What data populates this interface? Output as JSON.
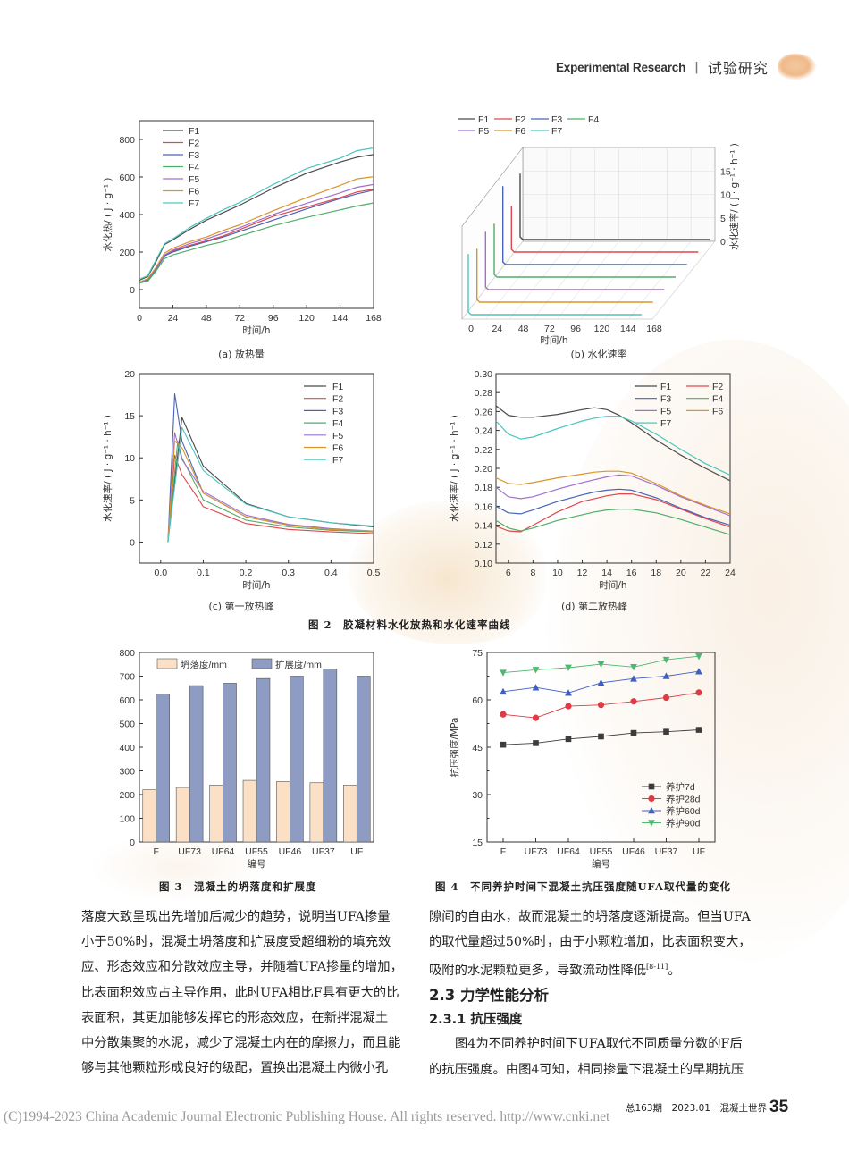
{
  "header": {
    "section_en": "Experimental Research",
    "separator": "|",
    "section_cn": "试验研究"
  },
  "figure2": {
    "caption": "图 2　胶凝材料水化放热和水化速率曲线",
    "panels": {
      "a": {
        "caption": "(a) 放热量"
      },
      "b": {
        "caption": "(b) 水化速率"
      },
      "c": {
        "caption": "(c) 第一放热峰"
      },
      "d": {
        "caption": "(d) 第二放热峰"
      }
    }
  },
  "figure3": {
    "caption": "图 3　混凝土的坍落度和扩展度"
  },
  "figure4": {
    "caption": "图 4　不同养护时间下混凝土抗压强度随UFA取代量的变化"
  },
  "colors": {
    "F1": "#4a4a4a",
    "F2": "#e0474c",
    "F3": "#4a63b5",
    "F4": "#4fae6a",
    "F5": "#a070d0",
    "F6": "#d9952a",
    "F7": "#4cc6c0",
    "slump": "#fbe0c6",
    "spread": "#8e9cc4"
  },
  "chart_data": [
    {
      "id": "fig2a",
      "type": "line",
      "title": "(a) 放热量",
      "xlabel": "时间/h",
      "ylabel": "水化热/ ( J · g⁻¹ )",
      "xlim": [
        0,
        168
      ],
      "ylim": [
        -100,
        900
      ],
      "xticks": [
        0,
        24,
        48,
        72,
        96,
        120,
        144,
        168
      ],
      "yticks": [
        0,
        200,
        400,
        600,
        800
      ],
      "legend_position": "upper-left",
      "x": [
        0,
        6,
        12,
        18,
        24,
        36,
        48,
        60,
        72,
        96,
        120,
        144,
        156,
        168
      ],
      "series": [
        {
          "name": "F1",
          "values": [
            50,
            70,
            150,
            240,
            265,
            320,
            370,
            410,
            450,
            540,
            620,
            680,
            705,
            720
          ]
        },
        {
          "name": "F2",
          "values": [
            35,
            50,
            110,
            180,
            205,
            235,
            260,
            285,
            320,
            390,
            440,
            490,
            520,
            535
          ]
        },
        {
          "name": "F3",
          "values": [
            35,
            50,
            110,
            180,
            200,
            230,
            255,
            280,
            310,
            370,
            430,
            485,
            510,
            530
          ]
        },
        {
          "name": "F4",
          "values": [
            35,
            45,
            100,
            165,
            185,
            210,
            235,
            255,
            285,
            340,
            385,
            425,
            445,
            462
          ]
        },
        {
          "name": "F5",
          "values": [
            38,
            55,
            115,
            185,
            210,
            245,
            270,
            300,
            330,
            400,
            460,
            515,
            545,
            560
          ]
        },
        {
          "name": "F6",
          "values": [
            40,
            58,
            120,
            195,
            220,
            255,
            280,
            315,
            345,
            420,
            490,
            555,
            590,
            602
          ]
        },
        {
          "name": "F7",
          "values": [
            55,
            75,
            160,
            245,
            270,
            330,
            380,
            425,
            465,
            560,
            645,
            700,
            740,
            755
          ]
        }
      ]
    },
    {
      "id": "fig2b",
      "type": "line",
      "title": "(b) 水化速率",
      "xlabel": "时间/h",
      "ylabel": "水化速率/ ( J · g⁻¹ · h⁻¹ )",
      "xlim": [
        0,
        168
      ],
      "zlim": [
        0,
        20
      ],
      "xticks": [
        0,
        24,
        48,
        72,
        96,
        120,
        144,
        168
      ],
      "zticks": [
        0,
        5,
        10,
        15
      ],
      "legend_position": "top",
      "series": [
        {
          "name": "F1",
          "peak": 14.8
        },
        {
          "name": "F2",
          "peak": 10.3
        },
        {
          "name": "F3",
          "peak": 17.6
        },
        {
          "name": "F4",
          "peak": 12.0
        },
        {
          "name": "F5",
          "peak": 13.0
        },
        {
          "name": "F6",
          "peak": 12.0
        },
        {
          "name": "F7",
          "peak": 13.6
        }
      ]
    },
    {
      "id": "fig2c",
      "type": "line",
      "title": "(c) 第一放热峰",
      "xlabel": "时间/h",
      "ylabel": "水化速率/ ( J · g⁻¹ · h⁻¹ )",
      "xlim": [
        -0.05,
        0.5
      ],
      "ylim": [
        -2.5,
        20
      ],
      "xticks": [
        0.0,
        0.1,
        0.2,
        0.3,
        0.4,
        0.5
      ],
      "yticks": [
        0,
        5,
        10,
        15,
        20
      ],
      "legend_position": "upper-right",
      "series": [
        {
          "name": "F1",
          "x": [
            0.017,
            0.05,
            0.1,
            0.2,
            0.3,
            0.4,
            0.5
          ],
          "values": [
            0,
            14.8,
            9.0,
            4.6,
            3.0,
            2.3,
            1.8
          ]
        },
        {
          "name": "F2",
          "x": [
            0.017,
            0.033,
            0.05,
            0.085,
            0.1,
            0.2,
            0.3,
            0.4,
            0.5
          ],
          "values": [
            0,
            10.3,
            8.0,
            5.4,
            4.2,
            2.2,
            1.5,
            1.2,
            1.0
          ]
        },
        {
          "name": "F3",
          "x": [
            0.017,
            0.033,
            0.05,
            0.1,
            0.2,
            0.3,
            0.4,
            0.5
          ],
          "values": [
            0,
            17.6,
            12.0,
            5.8,
            3.0,
            2.0,
            1.5,
            1.2
          ]
        },
        {
          "name": "F4",
          "x": [
            0.017,
            0.04,
            0.05,
            0.1,
            0.2,
            0.3,
            0.4,
            0.5
          ],
          "values": [
            0,
            12.0,
            10.0,
            5.0,
            2.6,
            1.8,
            1.4,
            1.2
          ]
        },
        {
          "name": "F5",
          "x": [
            0.017,
            0.033,
            0.05,
            0.1,
            0.2,
            0.3,
            0.4,
            0.5
          ],
          "values": [
            0,
            13.0,
            9.8,
            6.0,
            3.2,
            2.1,
            1.6,
            1.3
          ]
        },
        {
          "name": "F6",
          "x": [
            0.017,
            0.033,
            0.05,
            0.1,
            0.2,
            0.3,
            0.4,
            0.5
          ],
          "values": [
            0,
            12.0,
            11.2,
            5.8,
            3.0,
            2.0,
            1.5,
            1.3
          ]
        },
        {
          "name": "F7",
          "x": [
            0.017,
            0.05,
            0.1,
            0.2,
            0.3,
            0.4,
            0.5
          ],
          "values": [
            0,
            13.6,
            8.5,
            4.5,
            3.0,
            2.3,
            1.9
          ]
        }
      ]
    },
    {
      "id": "fig2d",
      "type": "line",
      "title": "(d) 第二放热峰",
      "xlabel": "时间/h",
      "ylabel": "水化速率/ ( J · g⁻¹ · h⁻¹ )",
      "xlim": [
        5,
        24
      ],
      "ylim": [
        0.1,
        0.3
      ],
      "xticks": [
        6,
        8,
        10,
        12,
        14,
        16,
        18,
        20,
        22,
        24
      ],
      "yticks": [
        0.1,
        0.12,
        0.14,
        0.16,
        0.18,
        0.2,
        0.22,
        0.24,
        0.26,
        0.28,
        0.3
      ],
      "legend_position": "upper-right",
      "x": [
        5,
        6,
        7,
        8,
        10,
        12,
        13,
        14,
        15,
        16,
        18,
        20,
        22,
        24
      ],
      "series": [
        {
          "name": "F1",
          "values": [
            0.266,
            0.256,
            0.254,
            0.254,
            0.257,
            0.262,
            0.264,
            0.262,
            0.256,
            0.248,
            0.23,
            0.214,
            0.2,
            0.187
          ]
        },
        {
          "name": "F2",
          "values": [
            0.139,
            0.134,
            0.133,
            0.14,
            0.154,
            0.165,
            0.168,
            0.171,
            0.173,
            0.173,
            0.167,
            0.157,
            0.147,
            0.138
          ]
        },
        {
          "name": "F3",
          "values": [
            0.16,
            0.153,
            0.152,
            0.156,
            0.165,
            0.172,
            0.175,
            0.177,
            0.178,
            0.177,
            0.169,
            0.158,
            0.148,
            0.14
          ]
        },
        {
          "name": "F4",
          "values": [
            0.145,
            0.137,
            0.134,
            0.137,
            0.145,
            0.151,
            0.154,
            0.156,
            0.157,
            0.157,
            0.153,
            0.146,
            0.138,
            0.13
          ]
        },
        {
          "name": "F5",
          "values": [
            0.18,
            0.17,
            0.168,
            0.17,
            0.178,
            0.185,
            0.188,
            0.191,
            0.193,
            0.192,
            0.182,
            0.17,
            0.16,
            0.15
          ]
        },
        {
          "name": "F6",
          "values": [
            0.19,
            0.184,
            0.183,
            0.185,
            0.19,
            0.194,
            0.196,
            0.197,
            0.197,
            0.195,
            0.184,
            0.171,
            0.161,
            0.152
          ]
        },
        {
          "name": "F7",
          "values": [
            0.25,
            0.236,
            0.231,
            0.233,
            0.242,
            0.25,
            0.253,
            0.255,
            0.255,
            0.25,
            0.236,
            0.22,
            0.205,
            0.193
          ]
        }
      ]
    },
    {
      "id": "fig3",
      "type": "bar",
      "title": "图 3 混凝土的坍落度和扩展度",
      "xlabel": "编号",
      "ylabel": "",
      "ylim": [
        0,
        800
      ],
      "yticks": [
        0,
        100,
        200,
        300,
        400,
        500,
        600,
        700,
        800
      ],
      "legend_position": "top",
      "categories": [
        "F",
        "UF73",
        "UF64",
        "UF55",
        "UF46",
        "UF37",
        "UF"
      ],
      "series": [
        {
          "name": "坍落度/mm",
          "values": [
            220,
            230,
            240,
            260,
            255,
            250,
            240
          ]
        },
        {
          "name": "扩展度/mm",
          "values": [
            625,
            660,
            670,
            690,
            700,
            730,
            700
          ]
        }
      ]
    },
    {
      "id": "fig4",
      "type": "line",
      "title": "图 4 不同养护时间下混凝土抗压强度随UFA取代量的变化",
      "xlabel": "编号",
      "ylabel": "抗压强度/MPa",
      "ylim": [
        15,
        75
      ],
      "yticks": [
        15,
        30,
        45,
        60,
        75
      ],
      "legend_position": "lower-right",
      "categories": [
        "F",
        "UF73",
        "UF64",
        "UF55",
        "UF46",
        "UF37",
        "UF"
      ],
      "series": [
        {
          "name": "养护7d",
          "marker": "square",
          "color": "#3c3c3c",
          "values": [
            45.8,
            46.3,
            47.6,
            48.4,
            49.5,
            49.9,
            50.5
          ]
        },
        {
          "name": "养护28d",
          "marker": "circle",
          "color": "#e03a44",
          "values": [
            55.4,
            54.3,
            58.0,
            58.4,
            59.5,
            60.7,
            62.3
          ]
        },
        {
          "name": "养护60d",
          "marker": "triangle-up",
          "color": "#3f5fc0",
          "values": [
            62.6,
            63.9,
            62.2,
            65.4,
            66.7,
            67.5,
            69.0
          ]
        },
        {
          "name": "养护90d",
          "marker": "triangle-down",
          "color": "#4cb870",
          "values": [
            68.6,
            69.5,
            70.2,
            71.3,
            70.4,
            72.7,
            73.8
          ]
        }
      ]
    }
  ],
  "body": {
    "left_column": [
      "落度大致呈现出先增加后减少的趋势，说明当UFA掺量",
      "小于50%时，混凝土坍落度和扩展度受超细粉的填充效",
      "应、形态效应和分散效应主导，并随着UFA掺量的增加，",
      "比表面积效应占主导作用，此时UFA相比F具有更大的比",
      "表面积，其更加能够发挥它的形态效应，在新拌混凝土",
      "中分散集聚的水泥，减少了混凝土内在的摩擦力，而且能",
      "够与其他颗粒形成良好的级配，置换出混凝土内微小孔"
    ],
    "right_column": {
      "para1": [
        "隙间的自由水，故而混凝土的坍落度逐渐提高。但当UFA",
        "的取代量超过50%时，由于小颗粒增加，比表面积变大，"
      ],
      "para1_last": "吸附的水泥颗粒更多，导致流动性降低",
      "para1_cite": "[8-11]",
      "para1_end": "。",
      "heading_2_3": "2.3 力学性能分析",
      "heading_2_3_1": "2.3.1 抗压强度",
      "para2": [
        "图4为不同养护时间下UFA取代不同质量分数的F后",
        "的抗压强度。由图4可知，相同掺量下混凝土的早期抗压"
      ]
    }
  },
  "footer": {
    "copyright": "(C)1994-2023 China Academic Journal Electronic Publishing House. All rights reserved.    http://www.cnki.net",
    "issue": "总163期　2023.01　混凝土世界",
    "page_number": "35"
  }
}
